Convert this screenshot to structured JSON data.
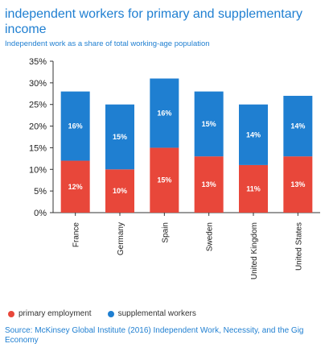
{
  "chart_data": {
    "type": "bar",
    "stacked": true,
    "title": "independent workers for primary and supplementary income",
    "subtitle": "Independent work as a share of total working-age population",
    "categories": [
      "France",
      "Germany",
      "Spain",
      "Sweden",
      "United Kingdom",
      "United States"
    ],
    "series": [
      {
        "name": "primary employment",
        "values": [
          12,
          10,
          15,
          13,
          11,
          13
        ],
        "labels": [
          "12%",
          "10%",
          "15%",
          "13%",
          "11%",
          "13%"
        ],
        "color": "#e8473a"
      },
      {
        "name": "supplemental workers",
        "values": [
          16,
          15,
          16,
          15,
          14,
          14
        ],
        "labels": [
          "16%",
          "15%",
          "16%",
          "15%",
          "14%",
          "14%"
        ],
        "color": "#1f7fd1"
      }
    ],
    "ylim": [
      0,
      35
    ],
    "yticks": [
      "0%",
      "5%",
      "10%",
      "15%",
      "20%",
      "25%",
      "30%",
      "35%"
    ],
    "grid": false,
    "legend_position": "bottom-left",
    "source": "Source: McKinsey Global Institute (2016) Independent Work, Necessity, and the Gig Economy"
  }
}
